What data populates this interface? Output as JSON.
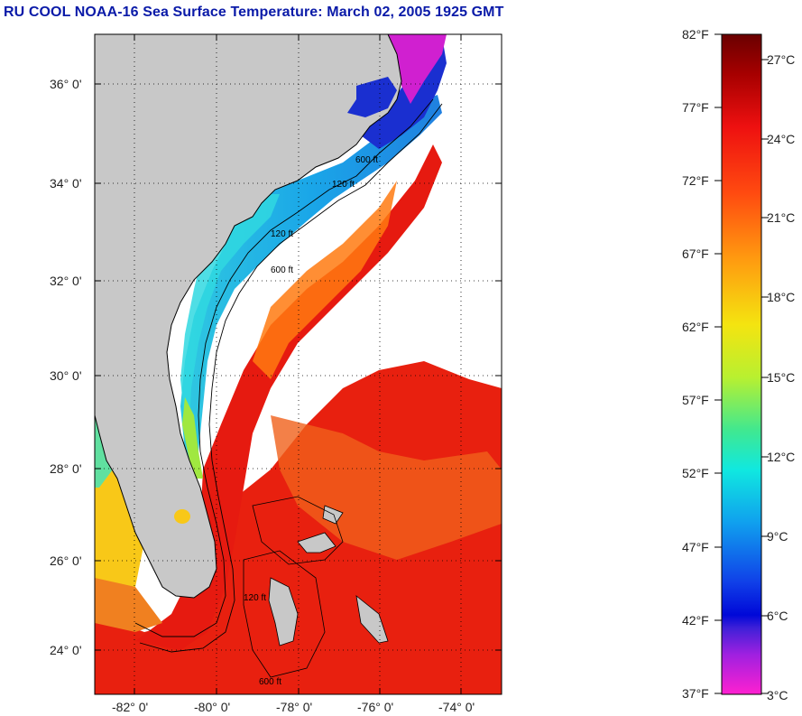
{
  "title": "RU COOL  NOAA-16  Sea Surface Temperature:  March 02, 2005 1925 GMT",
  "map": {
    "lat_labels": [
      "36° 0'",
      "34° 0'",
      "32° 0'",
      "30° 0'",
      "28° 0'",
      "26° 0'",
      "24° 0'"
    ],
    "lon_labels": [
      "-82° 0'",
      "-80° 0'",
      "-78° 0'",
      "-76° 0'",
      "-74° 0'"
    ],
    "isobath_labels": [
      "120 ft",
      "600 ft",
      "120 ft",
      "600 ft",
      "120 ft",
      "600 ft"
    ],
    "colors": {
      "land": "#c8c8c8",
      "cloud": "#ffffff",
      "gulf_stream": "#e8200f",
      "shelf_cold": "#2a9bdc",
      "north_cold": "#1a2fd0"
    }
  },
  "colorbar": {
    "fahrenheit_labels": [
      "82°F",
      "77°F",
      "72°F",
      "67°F",
      "62°F",
      "57°F",
      "52°F",
      "47°F",
      "42°F",
      "37°F"
    ],
    "celsius_labels": [
      "27°C",
      "24°C",
      "21°C",
      "18°C",
      "15°C",
      "12°C",
      "9°C",
      "6°C",
      "3°C"
    ]
  }
}
